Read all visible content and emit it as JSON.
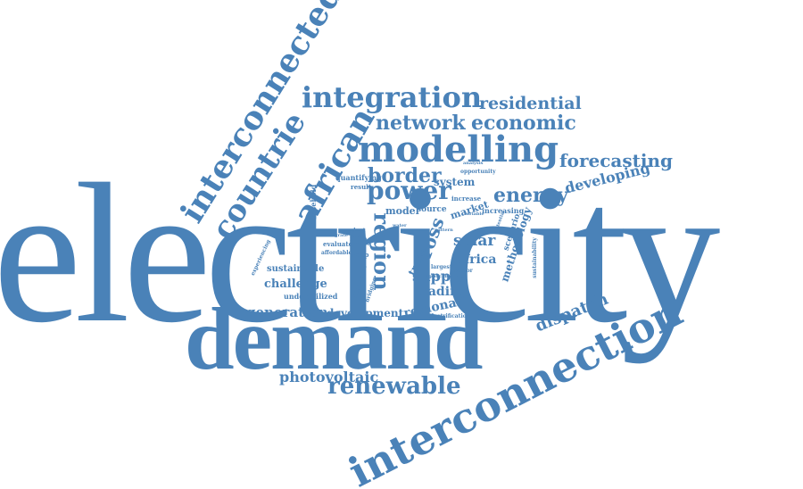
{
  "theme": {
    "word_color": "#4a82b8",
    "background": "#ffffff"
  },
  "words": [
    {
      "text": "electricity",
      "weight": 100
    },
    {
      "text": "demand",
      "weight": 55
    },
    {
      "text": "interconnection",
      "weight": 40
    },
    {
      "text": "interconnected",
      "weight": 32
    },
    {
      "text": "modelling",
      "weight": 30
    },
    {
      "text": "integration",
      "weight": 26
    },
    {
      "text": "countrie",
      "weight": 26
    },
    {
      "text": "african",
      "weight": 24
    },
    {
      "text": "power",
      "weight": 22
    },
    {
      "text": "renewable",
      "weight": 20
    },
    {
      "text": "network",
      "weight": 16
    },
    {
      "text": "economic",
      "weight": 16
    },
    {
      "text": "residential",
      "weight": 14
    },
    {
      "text": "forecasting",
      "weight": 14
    },
    {
      "text": "energy",
      "weight": 16
    },
    {
      "text": "border",
      "weight": 15
    },
    {
      "text": "developing",
      "weight": 12
    },
    {
      "text": "region",
      "weight": 16
    },
    {
      "text": "cross",
      "weight": 14
    },
    {
      "text": "dispatch",
      "weight": 13
    },
    {
      "text": "photovoltaic",
      "weight": 13
    },
    {
      "text": "generation",
      "weight": 11
    },
    {
      "text": "development",
      "weight": 10
    },
    {
      "text": "challenge",
      "weight": 10
    },
    {
      "text": "regional",
      "weight": 10
    },
    {
      "text": "trading",
      "weight": 10
    },
    {
      "text": "supply",
      "weight": 11
    },
    {
      "text": "solar",
      "weight": 11
    },
    {
      "text": "africa",
      "weight": 10
    },
    {
      "text": "methodology",
      "weight": 9
    },
    {
      "text": "system",
      "weight": 9
    },
    {
      "text": "market",
      "weight": 8
    },
    {
      "text": "model",
      "weight": 8
    },
    {
      "text": "source",
      "weight": 7
    },
    {
      "text": "increasing",
      "weight": 7
    },
    {
      "text": "scenario",
      "weight": 7
    },
    {
      "text": "trade",
      "weight": 8
    },
    {
      "text": "sustainable",
      "weight": 8
    },
    {
      "text": "underutilized",
      "weight": 6
    },
    {
      "text": "household",
      "weight": 6
    },
    {
      "text": "quantifying",
      "weight": 6
    },
    {
      "text": "result",
      "weight": 5
    },
    {
      "text": "evaluate",
      "weight": 5
    },
    {
      "text": "affordable",
      "weight": 4
    },
    {
      "text": "study",
      "weight": 6
    },
    {
      "text": "wapp",
      "weight": 5
    },
    {
      "text": "experiencing",
      "weight": 4
    },
    {
      "text": "historical",
      "weight": 5
    },
    {
      "text": "largest",
      "weight": 4
    },
    {
      "text": "electrification",
      "weight": 4
    },
    {
      "text": "increase",
      "weight": 5
    },
    {
      "text": "opportunity",
      "weight": 4
    },
    {
      "text": "sector",
      "weight": 4
    },
    {
      "text": "sustainability",
      "weight": 4
    },
    {
      "text": "applicable",
      "weight": 4
    },
    {
      "text": "bridging",
      "weight": 4
    },
    {
      "text": "plant",
      "weight": 4
    },
    {
      "text": "rate",
      "weight": 4
    },
    {
      "text": "integrate",
      "weight": 3
    },
    {
      "text": "variable",
      "weight": 3
    },
    {
      "text": "potential",
      "weight": 3
    },
    {
      "text": "analysis",
      "weight": 3
    },
    {
      "text": "water",
      "weight": 3
    },
    {
      "text": "pattern",
      "weight": 3
    }
  ]
}
